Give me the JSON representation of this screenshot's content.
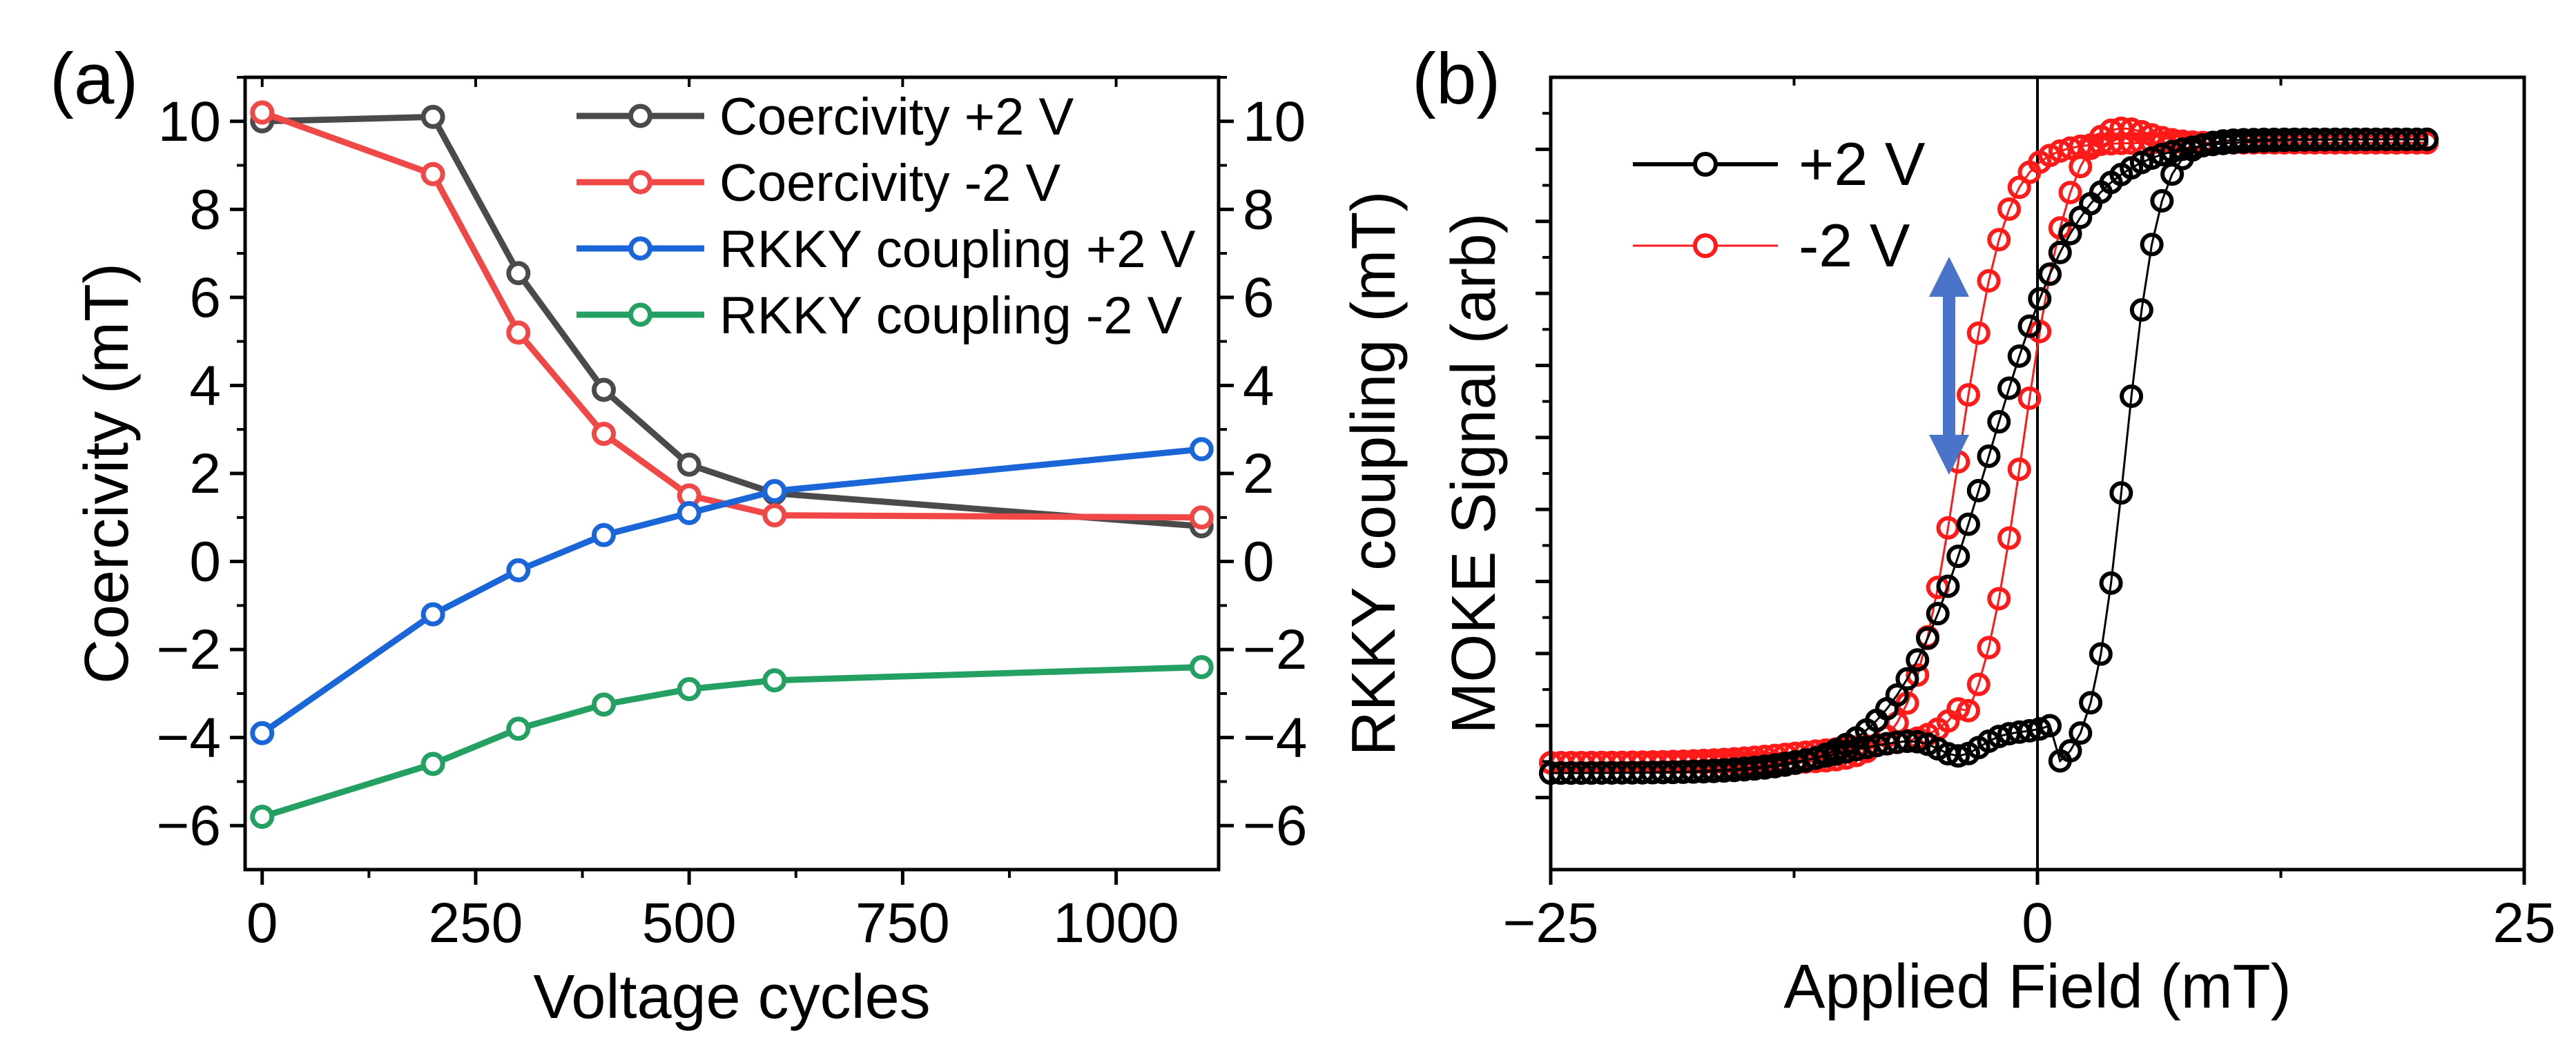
{
  "chart_data": [
    {
      "id": "a",
      "type": "line",
      "panel_label": "(a)",
      "xlabel": "Voltage cycles",
      "ylabel_left": "Coercivity (mT)",
      "ylabel_right": "RKKY coupling (mT)",
      "xlim": [
        -20,
        1120
      ],
      "ylim_left": [
        -7,
        11
      ],
      "ylim_right": [
        -7,
        11
      ],
      "xticks": [
        0,
        250,
        500,
        750,
        1000
      ],
      "xtick_labels": [
        "0",
        "250",
        "500",
        "750",
        "1000"
      ],
      "yticks_left": [
        -6,
        -4,
        -2,
        0,
        2,
        4,
        6,
        8,
        10
      ],
      "ytick_labels_left": [
        "−6",
        "−4",
        "−2",
        "0",
        "2",
        "4",
        "6",
        "8",
        "10"
      ],
      "yticks_right": [
        -6,
        -4,
        -2,
        0,
        2,
        4,
        6,
        8,
        10
      ],
      "ytick_labels_right": [
        "−6",
        "−4",
        "−2",
        "0",
        "2",
        "4",
        "6",
        "8",
        "10"
      ],
      "legend_position": "top-right",
      "series": [
        {
          "name": "Coercivity +2 V",
          "color": "#4a4a4a",
          "axis": "left",
          "x": [
            0,
            200,
            300,
            400,
            500,
            600,
            1100
          ],
          "y": [
            10.0,
            10.1,
            6.55,
            3.9,
            2.2,
            1.55,
            0.8
          ]
        },
        {
          "name": "Coercivity -2 V",
          "color": "#f04747",
          "axis": "left",
          "x": [
            0,
            200,
            300,
            400,
            500,
            600,
            1100
          ],
          "y": [
            10.2,
            8.8,
            5.2,
            2.9,
            1.5,
            1.05,
            1.0
          ]
        },
        {
          "name": "RKKY coupling +2 V",
          "color": "#1a66d9",
          "axis": "right",
          "x": [
            0,
            200,
            300,
            400,
            500,
            600,
            1100
          ],
          "y": [
            -3.9,
            -1.2,
            -0.2,
            0.6,
            1.1,
            1.6,
            2.55
          ]
        },
        {
          "name": "RKKY coupling -2 V",
          "color": "#23a062",
          "axis": "right",
          "x": [
            0,
            200,
            300,
            400,
            500,
            600,
            1100
          ],
          "y": [
            -5.8,
            -4.6,
            -3.8,
            -3.25,
            -2.9,
            -2.7,
            -2.4
          ]
        }
      ]
    },
    {
      "id": "b",
      "type": "scatter",
      "panel_label": "(b)",
      "xlabel": "Applied Field (mT)",
      "ylabel": "MOKE Signal (arb)",
      "xlim": [
        -25,
        25
      ],
      "ylim": [
        -1.15,
        1.15
      ],
      "xticks": [
        -25,
        0,
        25
      ],
      "xtick_labels": [
        "−25",
        "0",
        "25"
      ],
      "ytick_labels_shown": false,
      "vertical_line_at": 0,
      "annotation": "double-headed arrow",
      "legend_position": "top-left",
      "series": [
        {
          "name": "+2 V",
          "color": "#000000",
          "model": "hysteresis loop",
          "amplitude": 0.92,
          "offset": 0.05,
          "branches": [
            {
              "direction": "ascending",
              "field_range": [
                -25,
                20
              ],
              "switch_field": 4.5,
              "width": 1.7,
              "notes": "slow rise from -0.95 to -0.6 near -8 mT, small dip near -4 mT"
            },
            {
              "direction": "descending",
              "field_range": [
                20,
                -25
              ],
              "switch_field": -2.5,
              "width": 4.8
            }
          ]
        },
        {
          "name": "-2 V",
          "color": "#ff1a1a",
          "model": "hysteresis loop",
          "amplitude": 0.9,
          "offset": 0.06,
          "branches": [
            {
              "direction": "ascending",
              "field_range": [
                -25,
                20
              ],
              "switch_field": -0.8,
              "width": 2.3,
              "notes": "overshoot peak near +3.5 mT"
            },
            {
              "direction": "descending",
              "field_range": [
                20,
                -25
              ],
              "switch_field": -4.0,
              "width": 2.4
            }
          ]
        }
      ]
    }
  ]
}
